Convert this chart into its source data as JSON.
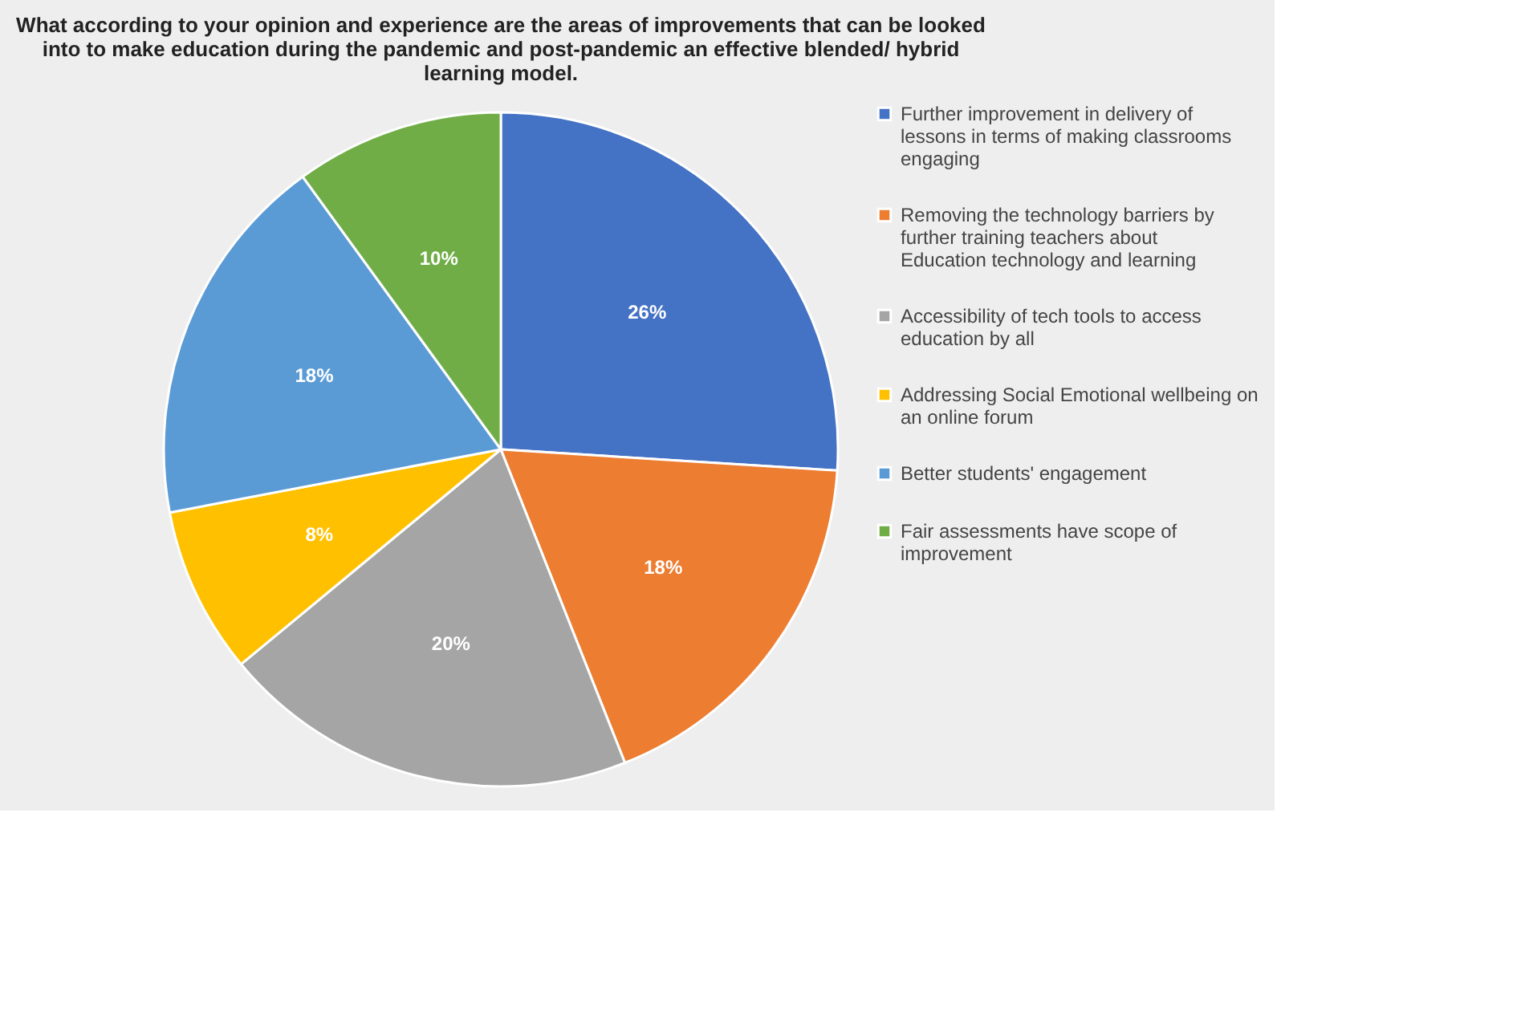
{
  "chart_data": {
    "type": "pie",
    "title": "What according to your opinion and experience are the areas of improvements that can be looked into to make education during the pandemic and post-pandemic an effective blended/ hybrid learning model.",
    "categories": [
      "Further improvement in delivery of lessons in terms of making classrooms engaging",
      "Removing the technology barriers by further training teachers about Education technology and learning",
      "Accessibility of tech tools to access education by all",
      "Addressing Social Emotional wellbeing on an online forum",
      "Better students' engagement",
      "Fair assessments have scope of improvement"
    ],
    "values": [
      26,
      18,
      20,
      8,
      18,
      10
    ],
    "value_labels": [
      "26%",
      "18%",
      "20%",
      "8%",
      "18%",
      "10%"
    ],
    "colors": [
      "#4472c4",
      "#ed7d31",
      "#a5a5a5",
      "#ffc000",
      "#5b9bd5",
      "#70ad47"
    ],
    "legend": "right"
  }
}
